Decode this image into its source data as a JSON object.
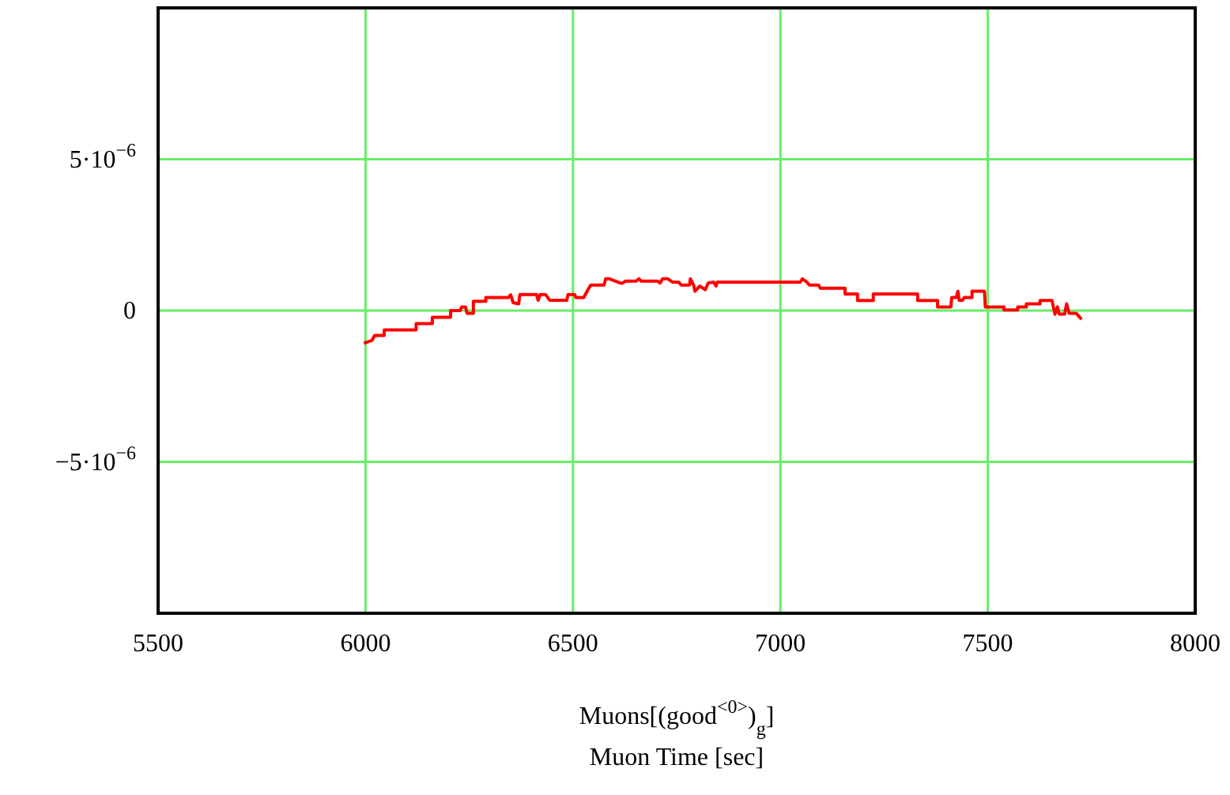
{
  "chart_data": {
    "type": "line",
    "xlabel": "Muons[(good$^{<0>}$)$_{g}$]\nMuon Time [sec]",
    "xlim": [
      5500,
      8000
    ],
    "xticks": [
      5500,
      6000,
      6500,
      7000,
      7500,
      8000
    ],
    "ylim": [
      -1e-05,
      1e-05
    ],
    "yticks": [
      {
        "value": -5e-06,
        "label": "−5·10$^{−6}$"
      },
      0,
      {
        "value": 5e-06,
        "label": "5·10$^{−6}$"
      }
    ],
    "grid": true,
    "marker": "none",
    "line_style": "solid",
    "series": [
      {
        "color": "#ff0000",
        "x": [
          5996,
          6016,
          6022,
          6045,
          6045,
          6122,
          6122,
          6161,
          6161,
          6205,
          6205,
          6228,
          6232,
          6241,
          6245,
          6260,
          6260,
          6290,
          6290,
          6344,
          6350,
          6356,
          6369,
          6372,
          6412,
          6416,
          6421,
          6434,
          6444,
          6485,
          6488,
          6504,
          6507,
          6526,
          6536,
          6543,
          6575,
          6579,
          6588,
          6614,
          6620,
          6626,
          6652,
          6659,
          6665,
          6704,
          6710,
          6716,
          6729,
          6740,
          6755,
          6761,
          6781,
          6783,
          6791,
          6794,
          6806,
          6819,
          6826,
          6839,
          6845,
          6848,
          7048,
          7053,
          7064,
          7070,
          7092,
          7096,
          7156,
          7156,
          7186,
          7186,
          7224,
          7224,
          7331,
          7331,
          7379,
          7379,
          7411,
          7413,
          7424,
          7428,
          7431,
          7439,
          7443,
          7462,
          7462,
          7492,
          7494,
          7539,
          7539,
          7572,
          7572,
          7593,
          7593,
          7626,
          7626,
          7655,
          7658,
          7662,
          7668,
          7672,
          7685,
          7690,
          7696,
          7713,
          7726
        ],
        "values": [
          -1.08e-06,
          -9.8e-07,
          -8.2e-07,
          -8.2e-07,
          -6.4e-07,
          -6.4e-07,
          -4.3e-07,
          -4.3e-07,
          -2.2e-07,
          -2.2e-07,
          0,
          0,
          1.2e-07,
          1.2e-07,
          -9e-08,
          -9e-08,
          3.1e-07,
          3.1e-07,
          4.3e-07,
          4.3e-07,
          5.2e-07,
          2.6e-07,
          2.2e-07,
          5.3e-07,
          5.3e-07,
          3.4e-07,
          5.3e-07,
          5.3e-07,
          3.4e-07,
          3.4e-07,
          5.3e-07,
          5.3e-07,
          4.3e-07,
          4.3e-07,
          6.9e-07,
          8.4e-07,
          8.4e-07,
          1.05e-06,
          1.05e-06,
          9.1e-07,
          9.1e-07,
          9.7e-07,
          9.7e-07,
          1.05e-06,
          9.7e-07,
          9.7e-07,
          9.1e-07,
          1.05e-06,
          1.05e-06,
          9.4e-07,
          9.4e-07,
          8.4e-07,
          8.4e-07,
          1.05e-06,
          8.4e-07,
          6.4e-07,
          8.1e-07,
          6.9e-07,
          9.1e-07,
          9.4e-07,
          8.1e-07,
          9.4e-07,
          9.4e-07,
          1.05e-06,
          9.4e-07,
          8.4e-07,
          8.4e-07,
          7.4e-07,
          7.4e-07,
          5.5e-07,
          5.5e-07,
          3.3e-07,
          3.3e-07,
          5.5e-07,
          5.5e-07,
          3.3e-07,
          3.3e-07,
          1.2e-07,
          1.2e-07,
          4.3e-07,
          4.3e-07,
          6.4e-07,
          3.4e-07,
          3.4e-07,
          4.3e-07,
          4.3e-07,
          6.4e-07,
          6.4e-07,
          1.2e-07,
          1.2e-07,
          2e-08,
          2e-08,
          1.2e-07,
          1.2e-07,
          2.2e-07,
          2.2e-07,
          3.3e-07,
          3.3e-07,
          1.2e-07,
          -1.2e-07,
          1.2e-07,
          -1.2e-07,
          -1.2e-07,
          2.2e-07,
          -9e-08,
          -9e-08,
          -2.9e-07
        ]
      }
    ]
  }
}
